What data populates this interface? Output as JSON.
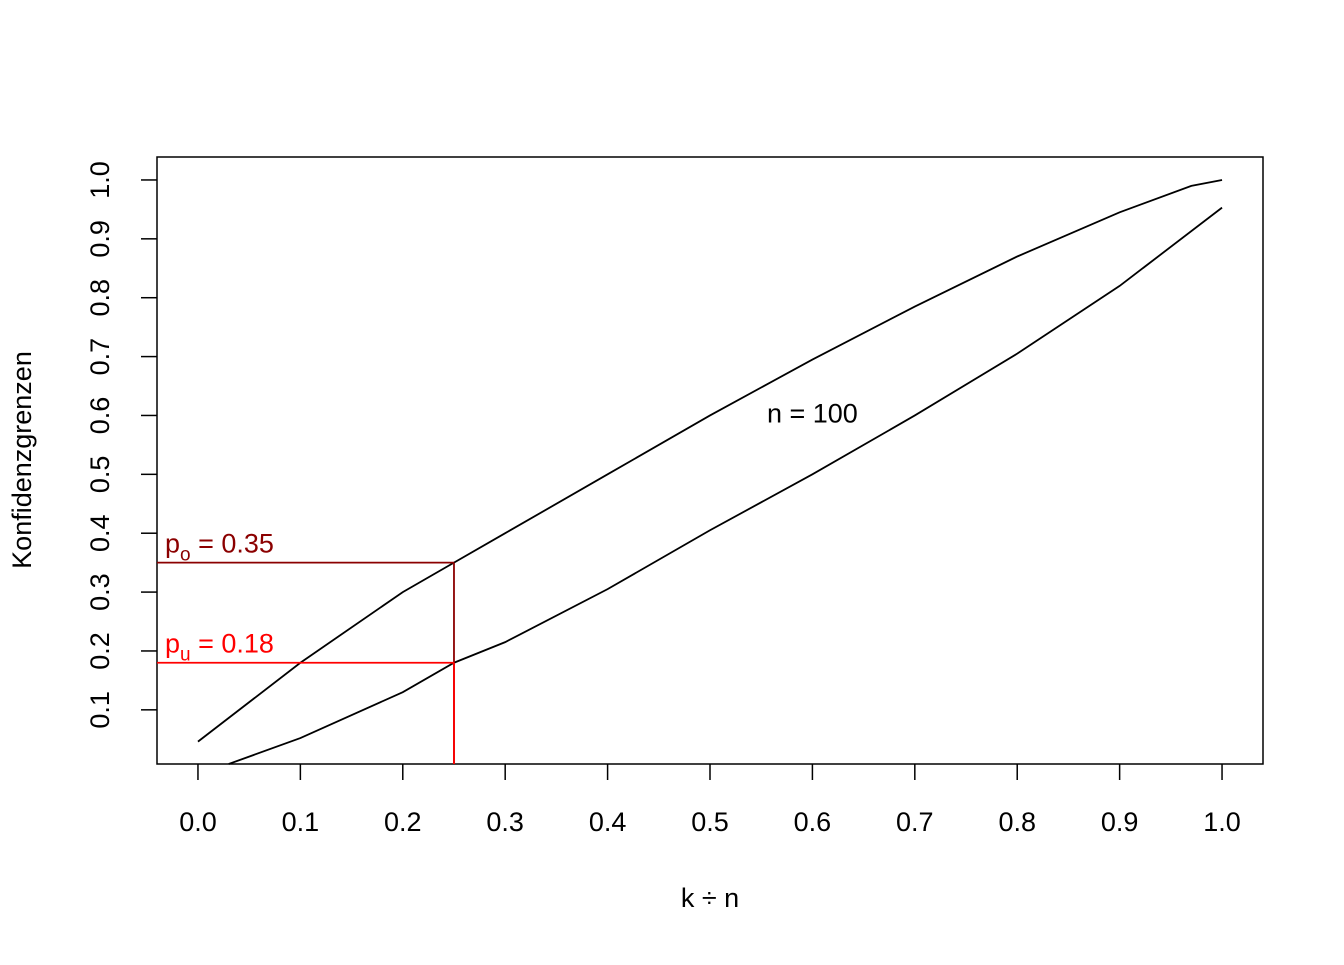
{
  "chart_data": {
    "type": "line",
    "xlabel": "k ÷ n",
    "ylabel": "Konfidenzgrenzen",
    "xlim": [
      -0.04,
      1.04
    ],
    "ylim": [
      0.008,
      1.039
    ],
    "xticks": [
      {
        "value": 0,
        "label": "0.0"
      },
      0.1,
      0.2,
      0.3,
      0.4,
      0.5,
      0.6,
      0.7,
      0.8,
      0.9,
      {
        "value": 1,
        "label": "1.0"
      }
    ],
    "yticks": [
      0.1,
      0.2,
      0.3,
      0.4,
      0.5,
      0.6,
      0.7,
      0.8,
      0.9,
      {
        "value": 1,
        "label": "1.0"
      }
    ],
    "series": [
      {
        "color": "#000000",
        "x": [
          0,
          0.1,
          0.2,
          0.25,
          0.3,
          0.4,
          0.5,
          0.6,
          0.7,
          0.8,
          0.9,
          0.97,
          1.0
        ],
        "values": [
          0.046,
          0.18,
          0.3,
          0.35,
          0.4,
          0.5,
          0.6,
          0.695,
          0.785,
          0.87,
          0.945,
          0.99,
          1.0
        ]
      },
      {
        "color": "#000000",
        "x": [
          0.03,
          0.1,
          0.2,
          0.25,
          0.3,
          0.4,
          0.5,
          0.6,
          0.7,
          0.8,
          0.9,
          1.0
        ],
        "values": [
          0.008,
          0.052,
          0.13,
          0.18,
          0.215,
          0.305,
          0.405,
          0.5,
          0.6,
          0.705,
          0.82,
          0.953
        ]
      }
    ],
    "annotations": [
      {
        "label": "p",
        "subscript": "o",
        "text": " = 0.35",
        "value": 0.35,
        "x": 0.25,
        "color": "#8b0000"
      },
      {
        "label": "p",
        "subscript": "u",
        "text": " = 0.18",
        "value": 0.18,
        "x": 0.25,
        "color": "#ff0000"
      }
    ],
    "note": {
      "text": "n = 100",
      "x": 0.6,
      "y": 0.6
    }
  }
}
